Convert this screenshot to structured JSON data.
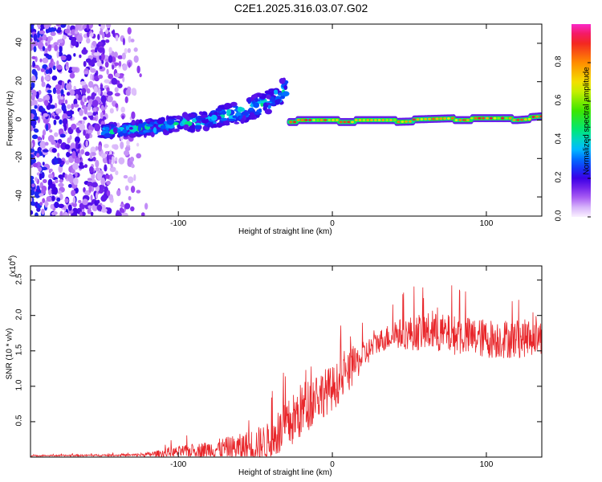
{
  "title": "C2E1.2025.316.03.07.G02",
  "chart_data": [
    {
      "type": "heatmap",
      "title": "C2E1.2025.316.03.07.G02",
      "xlabel": "Height of straight line (km)",
      "ylabel": "Frequency (Hz)",
      "xlim": [
        -196,
        136
      ],
      "ylim": [
        -50,
        50
      ],
      "xticks": [
        -100,
        0,
        100
      ],
      "yticks": [
        -40,
        -20,
        0,
        20,
        40
      ],
      "colorbar": {
        "label": "Normalized spectral amplitude",
        "range": [
          0.0,
          1.0
        ],
        "ticks": [
          "0.0",
          "0.2",
          "0.4",
          "0.6",
          "0.8"
        ]
      },
      "description_series": [
        {
          "name": "noise region",
          "x_range": [
            -196,
            -120
          ],
          "freq_range": [
            -50,
            50
          ],
          "amplitude": 0.1
        },
        {
          "name": "dispersed tone",
          "x": [
            -150,
            -120,
            -90,
            -60,
            -40,
            -30
          ],
          "freq": [
            -6,
            -4,
            -1,
            4,
            10,
            16
          ],
          "amplitude": 0.35
        },
        {
          "name": "steady tone",
          "x": [
            -28,
            0,
            40,
            80,
            120,
            136
          ],
          "freq": [
            0,
            0,
            0,
            1,
            1,
            2
          ],
          "amplitude": 0.9
        }
      ]
    },
    {
      "type": "line",
      "xlabel": "Height of straight line (km)",
      "ylabel": "SNR (10 * v/v)",
      "ymultiplier": "(x10",
      "ymultiplier_exp": "4",
      "xlim": [
        -196,
        136
      ],
      "ylim": [
        0,
        2.7
      ],
      "xticks": [
        -100,
        0,
        100
      ],
      "yticks": [
        "0.5",
        "1.0",
        "1.5",
        "2.0",
        "2.5"
      ],
      "color": "#e8262a",
      "envelope": {
        "x": [
          -196,
          -130,
          -120,
          -100,
          -80,
          -60,
          -40,
          -30,
          -20,
          -10,
          0,
          10,
          20,
          30,
          40,
          60,
          80,
          100,
          120,
          136
        ],
        "base": [
          0.02,
          0.03,
          0.04,
          0.08,
          0.12,
          0.15,
          0.25,
          0.45,
          0.7,
          0.9,
          1.0,
          1.2,
          1.45,
          1.65,
          1.75,
          1.8,
          1.75,
          1.7,
          1.7,
          1.72
        ],
        "amp": [
          0.01,
          0.02,
          0.04,
          0.1,
          0.15,
          0.25,
          0.35,
          0.45,
          0.5,
          0.45,
          0.4,
          0.35,
          0.25,
          0.2,
          0.25,
          0.35,
          0.35,
          0.35,
          0.35,
          0.3
        ]
      }
    }
  ]
}
